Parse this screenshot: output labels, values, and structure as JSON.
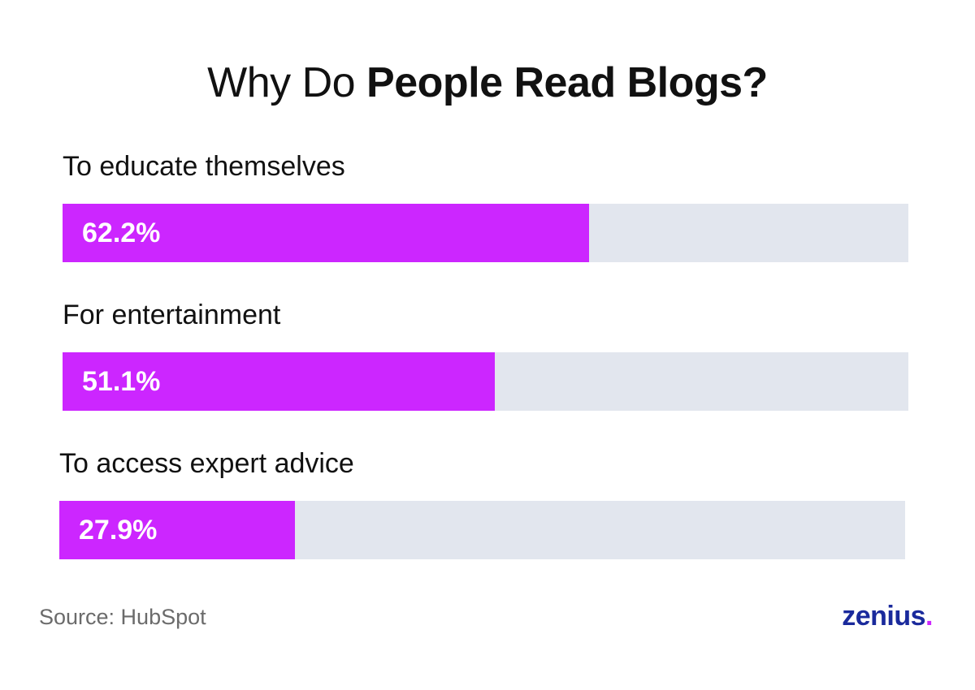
{
  "title": {
    "prefix": "Why Do",
    "emphasis": "People Read Blogs?"
  },
  "colors": {
    "bar_fill": "#cc26ff",
    "bar_track": "#e2e6ee",
    "logo_text": "#1a2a9c",
    "logo_dot": "#cc26ff"
  },
  "chart_data": {
    "type": "bar",
    "orientation": "horizontal",
    "title": "Why Do People Read Blogs?",
    "categories": [
      "To educate themselves",
      "For entertainment",
      "To access expert advice"
    ],
    "values": [
      62.2,
      51.1,
      27.9
    ],
    "value_labels": [
      "62.2%",
      "51.1%",
      "27.9%"
    ],
    "xlim": [
      0,
      100
    ],
    "grid": false,
    "legend": "none"
  },
  "footer": {
    "source": "Source: HubSpot",
    "logo_text": "zenius",
    "logo_dot": "."
  }
}
